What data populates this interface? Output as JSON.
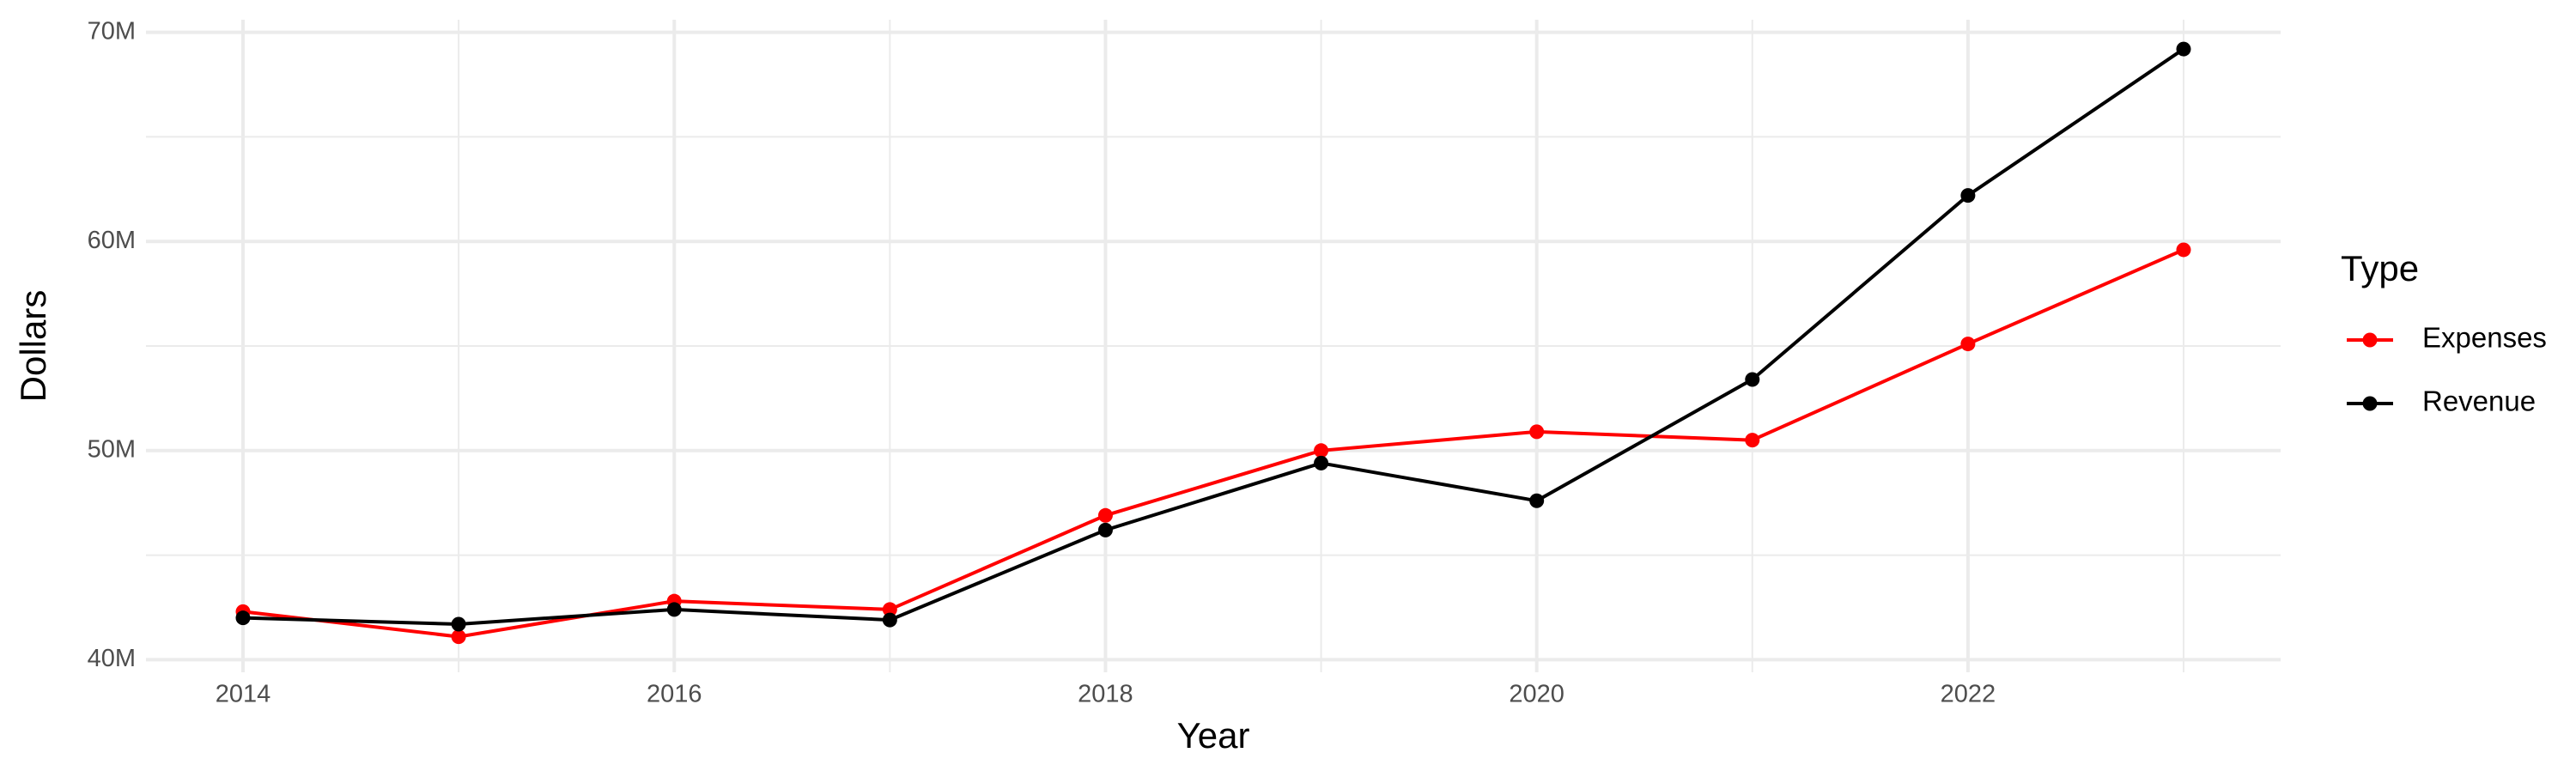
{
  "chart_data": {
    "type": "line",
    "x_label": "Year",
    "y_label": "Dollars",
    "legend_title": "Type",
    "legend_position": "right",
    "grid": true,
    "minor_grid": true,
    "x": [
      2014,
      2015,
      2016,
      2017,
      2018,
      2019,
      2020,
      2021,
      2022,
      2023
    ],
    "series": [
      {
        "name": "Expenses",
        "color": "#ff0000",
        "values": [
          42300000,
          41100000,
          42800000,
          42400000,
          46900000,
          50000000,
          50900000,
          50500000,
          55100000,
          59600000
        ]
      },
      {
        "name": "Revenue",
        "color": "#000000",
        "values": [
          42000000,
          41700000,
          42400000,
          41900000,
          46200000,
          49400000,
          47600000,
          53400000,
          62200000,
          69200000
        ]
      }
    ],
    "xlim": [
      2013.55,
      2023.45
    ],
    "xticks": [
      2014,
      2016,
      2018,
      2020,
      2022
    ],
    "ylim": [
      39400000,
      70600000
    ],
    "yticks": [
      {
        "value": 40000000,
        "label": "40M"
      },
      {
        "value": 50000000,
        "label": "50M"
      },
      {
        "value": 60000000,
        "label": "60M"
      },
      {
        "value": 70000000,
        "label": "70M"
      }
    ]
  }
}
